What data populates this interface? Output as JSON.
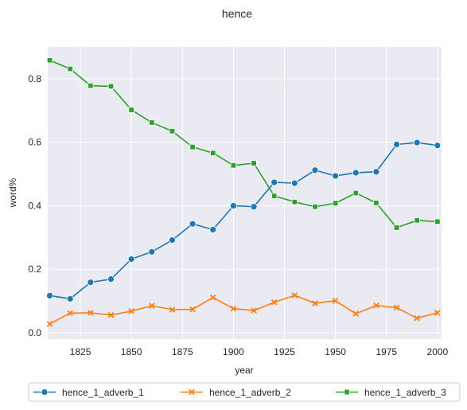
{
  "chart_data": {
    "type": "line",
    "title": "hence",
    "xlabel": "year",
    "ylabel": "word%",
    "xlim": [
      1809,
      2002
    ],
    "ylim": [
      -0.02,
      0.9
    ],
    "x_ticks": [
      1825,
      1850,
      1875,
      1900,
      1925,
      1950,
      1975,
      2000
    ],
    "y_ticks": [
      0.0,
      0.2,
      0.4,
      0.6,
      0.8
    ],
    "grid": true,
    "legend_position": "bottom-center",
    "x": [
      1810,
      1820,
      1830,
      1840,
      1850,
      1860,
      1870,
      1880,
      1890,
      1900,
      1910,
      1920,
      1930,
      1940,
      1950,
      1960,
      1970,
      1980,
      1990,
      2000
    ],
    "series": [
      {
        "name": "hence_1_adverb_1",
        "color": "#1f77b4",
        "marker": "circle",
        "values": [
          0.117,
          0.107,
          0.159,
          0.169,
          0.232,
          0.255,
          0.292,
          0.343,
          0.325,
          0.4,
          0.397,
          0.474,
          0.471,
          0.512,
          0.494,
          0.504,
          0.507,
          0.593,
          0.599,
          0.59
        ]
      },
      {
        "name": "hence_1_adverb_2",
        "color": "#ff7f0e",
        "marker": "x",
        "values": [
          0.028,
          0.062,
          0.063,
          0.056,
          0.068,
          0.085,
          0.073,
          0.074,
          0.111,
          0.076,
          0.07,
          0.096,
          0.118,
          0.093,
          0.101,
          0.06,
          0.086,
          0.079,
          0.046,
          0.063
        ]
      },
      {
        "name": "hence_1_adverb_3",
        "color": "#2ca02c",
        "marker": "square",
        "values": [
          0.858,
          0.831,
          0.778,
          0.776,
          0.702,
          0.662,
          0.635,
          0.585,
          0.566,
          0.527,
          0.534,
          0.431,
          0.412,
          0.397,
          0.408,
          0.44,
          0.409,
          0.331,
          0.354,
          0.35
        ]
      }
    ]
  },
  "colors": {
    "plot_background": "#eaeaf2",
    "grid": "#ffffff"
  }
}
